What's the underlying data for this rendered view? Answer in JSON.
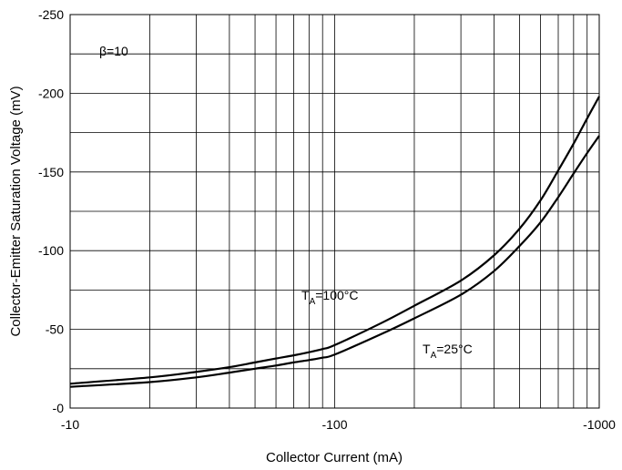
{
  "chart_data": {
    "type": "line",
    "title": "",
    "xlabel": "Collector Current (mA)",
    "ylabel": "Collector-Emitter Saturation Voltage (mV)",
    "x_scale": "log",
    "xlim": [
      -10,
      -1000
    ],
    "ylim": [
      0,
      -250
    ],
    "x_ticks": [
      -10,
      -100,
      -1000
    ],
    "x_tick_labels": [
      "-10",
      "-100",
      "-1000"
    ],
    "y_ticks": [
      0,
      -50,
      -100,
      -150,
      -200,
      -250
    ],
    "y_tick_labels": [
      "-0",
      "-50",
      "-100",
      "-150",
      "-200",
      "-250"
    ],
    "grid": true,
    "legend": "none",
    "annotations": [
      {
        "id": "beta",
        "text": "β=10"
      },
      {
        "id": "t100",
        "main": "T",
        "sub": "A",
        "rest": "=100°C"
      },
      {
        "id": "t25",
        "main": "T",
        "sub": "A",
        "rest": "=25°C"
      }
    ],
    "series": [
      {
        "condition": "TA=100°C",
        "color": "#000000",
        "x": [
          -10,
          -20,
          -30,
          -40,
          -50,
          -60,
          -70,
          -80,
          -90,
          -100,
          -150,
          -200,
          -300,
          -400,
          -500,
          -600,
          -700,
          -800,
          -900,
          -1000
        ],
        "y": [
          -15.5,
          -19.5,
          -23,
          -26,
          -29,
          -31.5,
          -33.5,
          -35.5,
          -37.5,
          -40,
          -54,
          -65,
          -81,
          -97,
          -114,
          -132,
          -151,
          -168,
          -184,
          -198
        ]
      },
      {
        "condition": "TA=25°C",
        "color": "#000000",
        "x": [
          -10,
          -20,
          -30,
          -40,
          -50,
          -60,
          -70,
          -80,
          -90,
          -100,
          -150,
          -200,
          -300,
          -400,
          -500,
          -600,
          -700,
          -800,
          -900,
          -1000
        ],
        "y": [
          -13.5,
          -16.5,
          -19.5,
          -22.5,
          -25,
          -27,
          -29,
          -30.5,
          -32,
          -34,
          -47,
          -57,
          -72,
          -87,
          -103,
          -118,
          -134,
          -149,
          -162,
          -173
        ]
      }
    ]
  }
}
